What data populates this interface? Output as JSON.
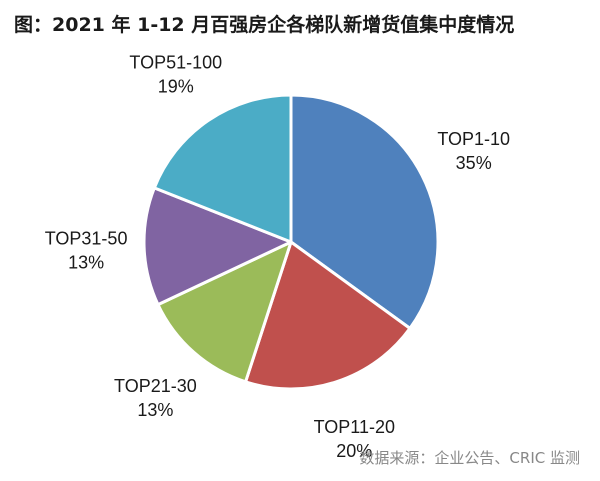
{
  "title": "图：2021 年 1-12 月百强房企各梯队新增货值集中度情况",
  "source": "数据来源：企业公告、CRIC 监测",
  "chart_data": {
    "type": "pie",
    "title": "图：2021 年 1-12 月百强房企各梯队新增货值集中度情况",
    "slices": [
      {
        "label": "TOP1-10",
        "value": 35,
        "value_label": "35%",
        "color": "#4F81BD"
      },
      {
        "label": "TOP11-20",
        "value": 20,
        "value_label": "20%",
        "color": "#C0504D"
      },
      {
        "label": "TOP21-30",
        "value": 13,
        "value_label": "13%",
        "color": "#9BBB59"
      },
      {
        "label": "TOP31-50",
        "value": 13,
        "value_label": "13%",
        "color": "#8064A2"
      },
      {
        "label": "TOP51-100",
        "value": 19,
        "value_label": "19%",
        "color": "#4BACC6"
      }
    ],
    "start_angle": "12 o'clock",
    "direction": "clockwise",
    "legend": "none"
  }
}
